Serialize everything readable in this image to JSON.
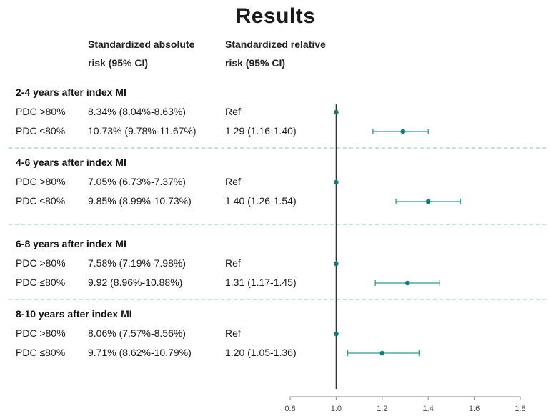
{
  "title": "Results",
  "columns": {
    "absolute_line1": "Standardized absolute",
    "absolute_line2": "risk (95% CI)",
    "relative_line1": "Standardized relative",
    "relative_line2": "risk (95% CI)"
  },
  "groups": [
    {
      "label": "2-4 years after index MI",
      "rows": [
        {
          "label": "PDC >80%",
          "abs": "8.34% (8.04%-8.63%)",
          "rel": "Ref"
        },
        {
          "label": "PDC ≤80%",
          "abs": "10.73% (9.78%-11.67%)",
          "rel": "1.29 (1.16-1.40)"
        }
      ]
    },
    {
      "label": "4-6 years after index MI",
      "rows": [
        {
          "label": "PDC >80%",
          "abs": "7.05% (6.73%-7.37%)",
          "rel": "Ref"
        },
        {
          "label": "PDC ≤80%",
          "abs": "9.85% (8.99%-10.73%)",
          "rel": "1.40 (1.26-1.54)"
        }
      ]
    },
    {
      "label": "6-8 years after index MI",
      "rows": [
        {
          "label": "PDC >80%",
          "abs": "7.58% (7.19%-7.98%)",
          "rel": "Ref"
        },
        {
          "label": "PDC ≤80%",
          "abs": "9.92 (8.96%-10.88%)",
          "rel": "1.31 (1.17-1.45)"
        }
      ]
    },
    {
      "label": "8-10 years after index MI",
      "rows": [
        {
          "label": "PDC >80%",
          "abs": "8.06% (7.57%-8.56%)",
          "rel": "Ref"
        },
        {
          "label": "PDC ≤80%",
          "abs": "9.71% (8.62%-10.79%)",
          "rel": "1.20 (1.05-1.36)"
        }
      ]
    }
  ],
  "chart_data": {
    "type": "forest",
    "xlim": [
      0.8,
      1.8
    ],
    "xticks": [
      "0.8",
      "1.0",
      "1.2",
      "1.4",
      "1.6",
      "1.8"
    ],
    "reference_line": 1.0,
    "points": [
      {
        "group": "2-4 years after index MI",
        "row": "PDC >80%",
        "est": 1.0,
        "lo": null,
        "hi": null
      },
      {
        "group": "2-4 years after index MI",
        "row": "PDC ≤80%",
        "est": 1.29,
        "lo": 1.16,
        "hi": 1.4
      },
      {
        "group": "4-6 years after index MI",
        "row": "PDC >80%",
        "est": 1.0,
        "lo": null,
        "hi": null
      },
      {
        "group": "4-6 years after index MI",
        "row": "PDC ≤80%",
        "est": 1.4,
        "lo": 1.26,
        "hi": 1.54
      },
      {
        "group": "6-8 years after index MI",
        "row": "PDC >80%",
        "est": 1.0,
        "lo": null,
        "hi": null
      },
      {
        "group": "6-8 years after index MI",
        "row": "PDC ≤80%",
        "est": 1.31,
        "lo": 1.17,
        "hi": 1.45
      },
      {
        "group": "8-10 years after index MI",
        "row": "PDC >80%",
        "est": 1.0,
        "lo": null,
        "hi": null
      },
      {
        "group": "8-10 years after index MI",
        "row": "PDC ≤80%",
        "est": 1.2,
        "lo": 1.05,
        "hi": 1.36
      }
    ],
    "colors": {
      "point": "#0e7c7b",
      "ci": "#2a9d8f",
      "reference": "#333333",
      "separator": "#8fd3c8"
    }
  }
}
